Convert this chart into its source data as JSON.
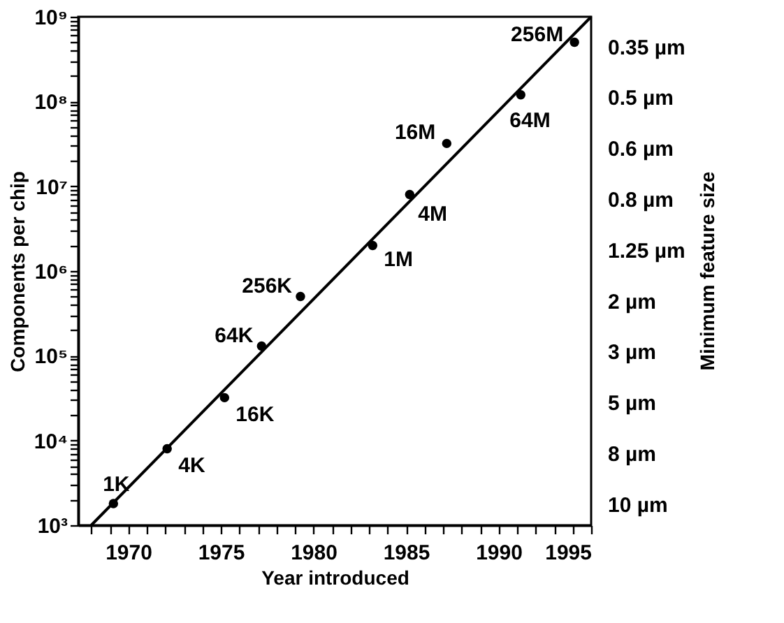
{
  "chart_data": {
    "type": "scatter",
    "xlabel": "Year introduced",
    "ylabel": "Components per chip",
    "log": "y",
    "xlim": [
      1967.3,
      1995
    ],
    "ylim": [
      1000,
      1000000000
    ],
    "xticks": [
      {
        "value": 1968,
        "label": null
      },
      {
        "value": 1969,
        "label": null
      },
      1970,
      {
        "value": 1971,
        "label": null
      },
      {
        "value": 1972,
        "label": null
      },
      {
        "value": 1973,
        "label": null
      },
      {
        "value": 1974,
        "label": null
      },
      1975,
      {
        "value": 1976,
        "label": null
      },
      {
        "value": 1977,
        "label": null
      },
      {
        "value": 1978,
        "label": null
      },
      {
        "value": 1979,
        "label": null
      },
      1980,
      {
        "value": 1981,
        "label": null
      },
      {
        "value": 1982,
        "label": null
      },
      {
        "value": 1983,
        "label": null
      },
      {
        "value": 1984,
        "label": null
      },
      1985,
      {
        "value": 1986,
        "label": null
      },
      {
        "value": 1987,
        "label": null
      },
      {
        "value": 1988,
        "label": null
      },
      {
        "value": 1989,
        "label": null
      },
      1990,
      {
        "value": 1991,
        "label": null
      },
      {
        "value": 1992,
        "label": null
      },
      {
        "value": 1993,
        "label": null
      },
      {
        "value": 1994,
        "label": null
      },
      1995
    ],
    "yticks": [
      {
        "value": 1000,
        "label": "10³"
      },
      {
        "value": 2000,
        "label": null
      },
      {
        "value": 3000,
        "label": null
      },
      {
        "value": 4000,
        "label": null
      },
      {
        "value": 5000,
        "label": null
      },
      {
        "value": 6000,
        "label": null
      },
      {
        "value": 7000,
        "label": null
      },
      {
        "value": 8000,
        "label": null
      },
      {
        "value": 9000,
        "label": null
      },
      {
        "value": 10000,
        "label": "10⁴"
      },
      {
        "value": 20000,
        "label": null
      },
      {
        "value": 30000,
        "label": null
      },
      {
        "value": 40000,
        "label": null
      },
      {
        "value": 50000,
        "label": null
      },
      {
        "value": 60000,
        "label": null
      },
      {
        "value": 70000,
        "label": null
      },
      {
        "value": 80000,
        "label": null
      },
      {
        "value": 90000,
        "label": null
      },
      {
        "value": 100000,
        "label": "10⁵"
      },
      {
        "value": 200000,
        "label": null
      },
      {
        "value": 300000,
        "label": null
      },
      {
        "value": 400000,
        "label": null
      },
      {
        "value": 500000,
        "label": null
      },
      {
        "value": 600000,
        "label": null
      },
      {
        "value": 700000,
        "label": null
      },
      {
        "value": 800000,
        "label": null
      },
      {
        "value": 900000,
        "label": null
      },
      {
        "value": 1000000,
        "label": "10⁶"
      },
      {
        "value": 2000000,
        "label": null
      },
      {
        "value": 3000000,
        "label": null
      },
      {
        "value": 4000000,
        "label": null
      },
      {
        "value": 5000000,
        "label": null
      },
      {
        "value": 6000000,
        "label": null
      },
      {
        "value": 7000000,
        "label": null
      },
      {
        "value": 8000000,
        "label": null
      },
      {
        "value": 9000000,
        "label": null
      },
      {
        "value": 10000000,
        "label": "10⁷"
      },
      {
        "value": 20000000,
        "label": null
      },
      {
        "value": 30000000,
        "label": null
      },
      {
        "value": 40000000,
        "label": null
      },
      {
        "value": 50000000,
        "label": null
      },
      {
        "value": 60000000,
        "label": null
      },
      {
        "value": 70000000,
        "label": null
      },
      {
        "value": 80000000,
        "label": null
      },
      {
        "value": 90000000,
        "label": null
      },
      {
        "value": 100000000,
        "label": "10⁸"
      },
      {
        "value": 200000000,
        "label": null
      },
      {
        "value": 300000000,
        "label": null
      },
      {
        "value": 400000000,
        "label": null
      },
      {
        "value": 500000000,
        "label": null
      },
      {
        "value": 600000000,
        "label": null
      },
      {
        "value": 700000000,
        "label": null
      },
      {
        "value": 800000000,
        "label": null
      },
      {
        "value": 900000000,
        "label": null
      },
      {
        "value": 1000000000,
        "label": "10⁹"
      }
    ],
    "grid": false,
    "annotations": [
      {
        "text": "1K",
        "x": 1969.2,
        "y": 1800
      },
      {
        "text": "4K",
        "x": 1972.1,
        "y": 8000
      },
      {
        "text": "16K",
        "x": 1975.2,
        "y": 32000
      },
      {
        "text": "64K",
        "x": 1977.2,
        "y": 130000
      },
      {
        "text": "256K",
        "x": 1979.3,
        "y": 500000
      },
      {
        "text": "1M",
        "x": 1983.2,
        "y": 2000000
      },
      {
        "text": "4M",
        "x": 1985.2,
        "y": 8000000
      },
      {
        "text": "16M",
        "x": 1987.2,
        "y": 32000000
      },
      {
        "text": "64M",
        "x": 1991.2,
        "y": 120000000
      },
      {
        "text": "256M",
        "x": 1994.1,
        "y": 500000000
      },
      "0.35 µm",
      "0.5 µm",
      "0.6 µm",
      "0.8 µm",
      "1.25 µm",
      "2 µm",
      "3 µm",
      "5 µm",
      "8 µm",
      "10 µm",
      "Minimum feature size"
    ],
    "series": [
      {
        "color": "#000000",
        "marker": "circle",
        "x": [
          1969.2,
          1972.1,
          1975.2,
          1977.2,
          1979.3,
          1983.2,
          1985.2,
          1987.2,
          1991.2,
          1994.1
        ],
        "values": [
          1800,
          8000,
          32000,
          130000,
          500000,
          2000000,
          8000000,
          32000000,
          120000000,
          500000000
        ]
      },
      {
        "type": "line",
        "color": "#000000",
        "x": [
          1968,
          1995
        ],
        "values": [
          1000,
          1000000000
        ]
      }
    ]
  }
}
